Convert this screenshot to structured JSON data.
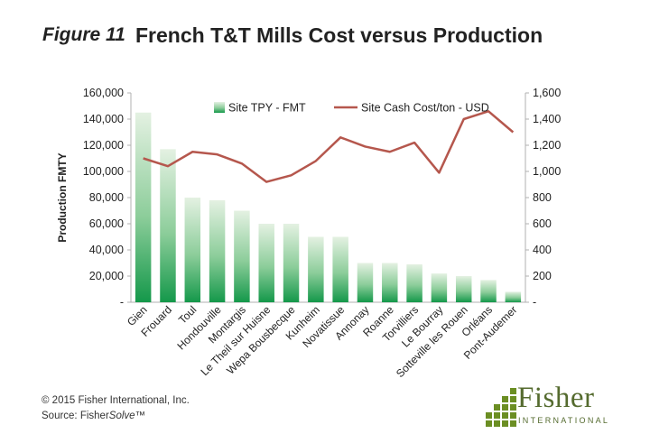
{
  "figure_label": "Figure 11",
  "footer": {
    "copyright": "© 2015 Fisher International, Inc.",
    "source_prefix": "Source: Fisher",
    "source_italic": "Solve",
    "source_suffix": "™"
  },
  "logo": {
    "name": "Fisher",
    "sub": "INTERNATIONAL"
  },
  "colors": {
    "bar_top": "#dfeedd",
    "bar_bottom": "#1e9e4a",
    "line": "#b5574d",
    "axis": "#999999"
  },
  "chart_data": {
    "type": "bar+line",
    "title": "French T&T Mills Cost versus Production",
    "ylabel": "Production FMTY",
    "y2label": "",
    "categories": [
      "Gien",
      "Frouard",
      "Toul",
      "Hondouville",
      "Montargis",
      "Le Theil sur Huisne",
      "Wepa Bousbecque",
      "Kunheim",
      "Novatissue",
      "Annonay",
      "Roanne",
      "Torvilliers",
      "Le Bourray",
      "Sotteville les Rouen",
      "Orléans",
      "Pont-Audemer"
    ],
    "ylim": [
      0,
      160000
    ],
    "y2lim": [
      0,
      1600
    ],
    "y_ticks": [
      "-",
      "20,000",
      "40,000",
      "60,000",
      "80,000",
      "100,000",
      "120,000",
      "140,000",
      "160,000"
    ],
    "y2_ticks": [
      "-",
      "200",
      "400",
      "600",
      "800",
      "1,000",
      "1,200",
      "1,400",
      "1,600"
    ],
    "legend_position": "top",
    "series": [
      {
        "name": "Site TPY - FMT",
        "type": "bar",
        "axis": "left",
        "values": [
          145000,
          117000,
          80000,
          78000,
          70000,
          60000,
          60000,
          50000,
          50000,
          30000,
          30000,
          29000,
          22000,
          20000,
          17000,
          8000
        ]
      },
      {
        "name": "Site Cash Cost/ton - USD",
        "type": "line",
        "axis": "right",
        "values": [
          1100,
          1040,
          1150,
          1130,
          1060,
          920,
          970,
          1080,
          1260,
          1190,
          1150,
          1220,
          990,
          1400,
          1460,
          1300
        ]
      }
    ]
  }
}
